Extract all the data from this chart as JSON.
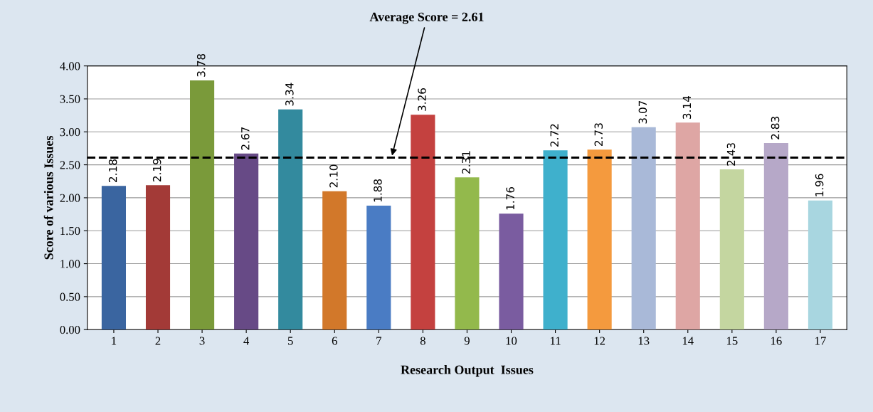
{
  "chart_data": {
    "type": "bar",
    "xlabel": "Research Output  Issues",
    "ylabel": "Score of various Issues",
    "categories": [
      "1",
      "2",
      "3",
      "4",
      "5",
      "6",
      "7",
      "8",
      "9",
      "10",
      "11",
      "12",
      "13",
      "14",
      "15",
      "16",
      "17"
    ],
    "values": [
      2.18,
      2.19,
      3.78,
      2.67,
      3.34,
      2.1,
      1.88,
      3.26,
      2.31,
      1.76,
      2.72,
      2.73,
      3.07,
      3.14,
      2.43,
      2.83,
      1.96
    ],
    "value_labels": [
      "2.18",
      "2.19",
      "3.78",
      "2.67",
      "3.34",
      "2.10",
      "1.88",
      "3.26",
      "2.31",
      "1.76",
      "2.72",
      "2.73",
      "3.07",
      "3.14",
      "2.43",
      "2.83",
      "1.96"
    ],
    "colors": [
      "#3a65a0",
      "#a33a37",
      "#7a9a3a",
      "#674a86",
      "#338a9e",
      "#d2782a",
      "#4a7cc4",
      "#c4413f",
      "#93b94c",
      "#7a5ca0",
      "#3fb0cc",
      "#f49a3e",
      "#a9b9d8",
      "#dea6a4",
      "#c4d6a0",
      "#b6a8c8",
      "#a8d6e0"
    ],
    "ylim": [
      0,
      4
    ],
    "yticks": [
      {
        "value": 0,
        "label": "0.00"
      },
      {
        "value": 0.5,
        "label": "0.50"
      },
      {
        "value": 1,
        "label": "1.00"
      },
      {
        "value": 1.5,
        "label": "1.50"
      },
      {
        "value": 2,
        "label": "2.00"
      },
      {
        "value": 2.5,
        "label": "2.50"
      },
      {
        "value": 3,
        "label": "3.00"
      },
      {
        "value": 3.5,
        "label": "3.50"
      },
      {
        "value": 4,
        "label": "4.00"
      }
    ],
    "ref_lines": [
      {
        "axis": "y",
        "value": 2.61,
        "label": "Average Score = 2.61",
        "color": "#000000",
        "line_style": "dashed"
      }
    ],
    "grid": "y"
  }
}
